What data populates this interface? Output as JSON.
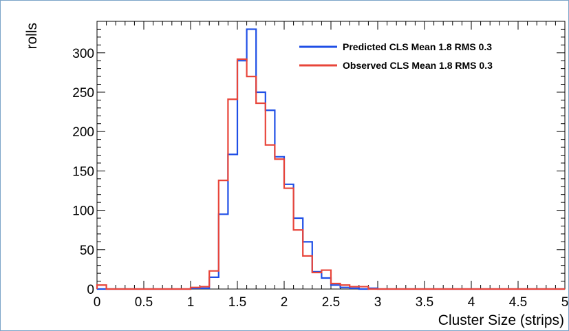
{
  "chart_data": {
    "type": "histogram",
    "xlabel": "Cluster Size (strips)",
    "ylabel": "rolls",
    "xlim": [
      0,
      5
    ],
    "ylim": [
      0,
      340
    ],
    "bin_width": 0.1,
    "x_ticks": [
      "0",
      "0.5",
      "1",
      "1.5",
      "2",
      "2.5",
      "3",
      "3.5",
      "4",
      "4.5",
      "5"
    ],
    "y_ticks": [
      "0",
      "50",
      "100",
      "150",
      "200",
      "250",
      "300"
    ],
    "legend_position": "top-right",
    "series": [
      {
        "name": "Predicted CLS Mean 1.8 RMS 0.3",
        "color": "#1f4fe6",
        "values": [
          0,
          0,
          0,
          0,
          0,
          0,
          0,
          0,
          0,
          0,
          1,
          1,
          15,
          95,
          171,
          290,
          330,
          250,
          227,
          168,
          133,
          90,
          60,
          22,
          14,
          5,
          2,
          1,
          0,
          1,
          0,
          0,
          0,
          0,
          0,
          0,
          0,
          0,
          0,
          0,
          0,
          0,
          0,
          0,
          0,
          0,
          0,
          0,
          0,
          0
        ]
      },
      {
        "name": "Observed CLS Mean 1.8 RMS 0.3",
        "color": "#e8453a",
        "values": [
          5,
          0,
          0,
          0,
          0,
          0,
          0,
          0,
          0,
          0,
          2,
          3,
          23,
          138,
          241,
          292,
          270,
          236,
          183,
          165,
          128,
          75,
          42,
          21,
          24,
          7,
          5,
          3,
          3,
          0,
          0,
          0,
          0,
          0,
          0,
          0,
          0,
          0,
          0,
          0,
          0,
          0,
          0,
          0,
          0,
          0,
          0,
          0,
          0,
          0
        ]
      }
    ]
  }
}
